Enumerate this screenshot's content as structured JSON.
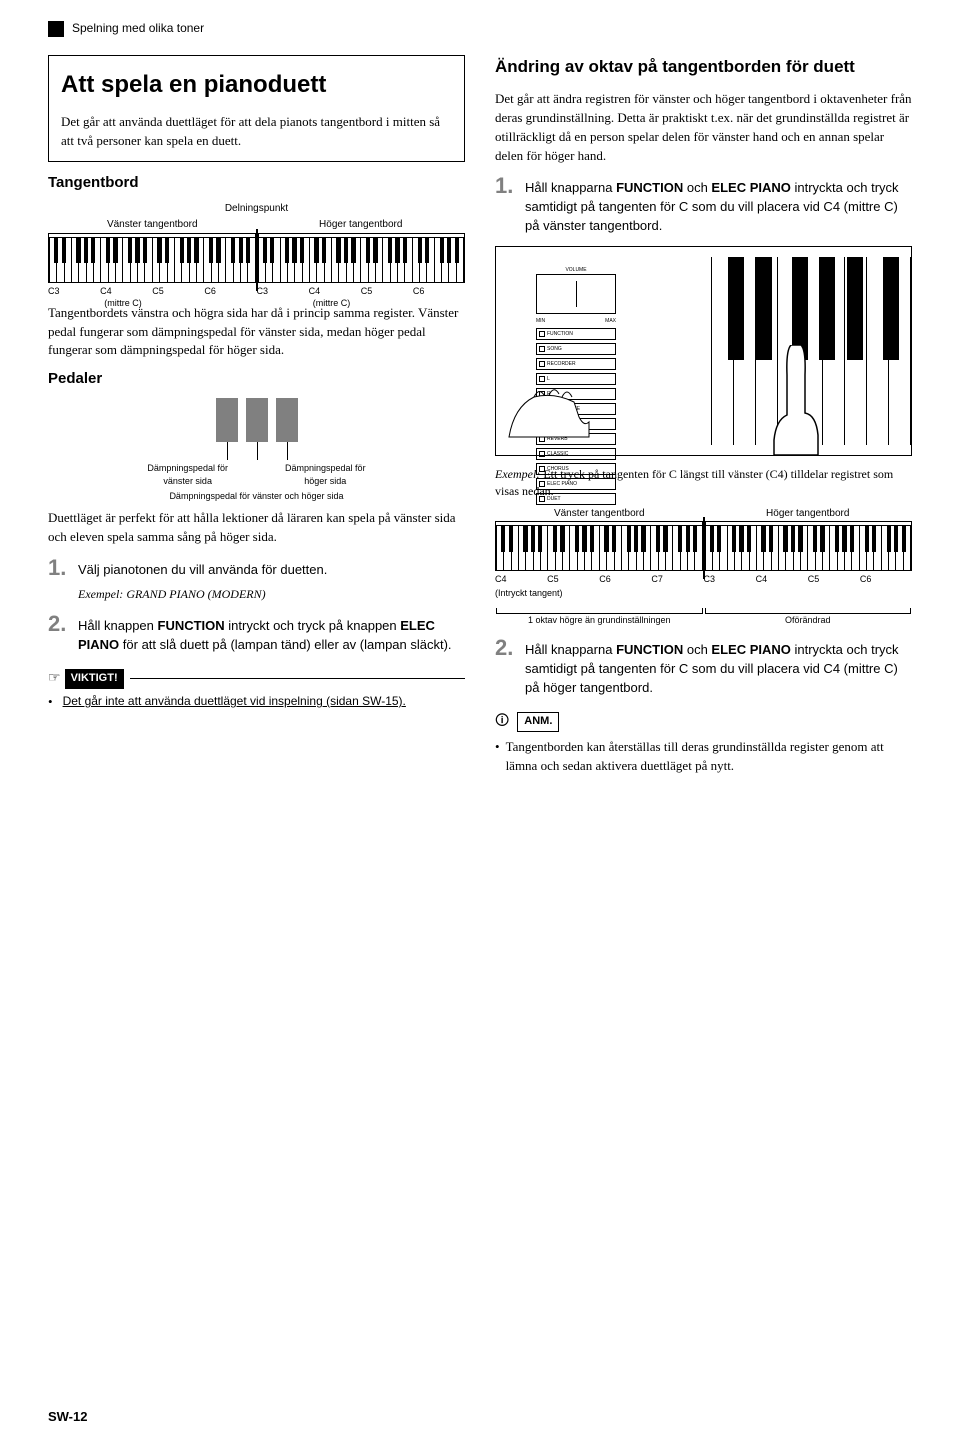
{
  "header": {
    "section_title": "Spelning med olika toner"
  },
  "left": {
    "box_title": "Att spela en pianoduett",
    "box_text": "Det går att använda duettläget för att dela pianots tangentbord i mitten så att två personer kan spela en duett.",
    "tangentbord_heading": "Tangentbord",
    "split_label": "Delningspunkt",
    "left_kb_label": "Vänster tangentbord",
    "right_kb_label": "Höger tangentbord",
    "kb_notes_left": [
      "C3",
      "C4",
      "C5",
      "C6"
    ],
    "kb_notes_right": [
      "C3",
      "C4",
      "C5",
      "C6"
    ],
    "mittre_c": "(mittre C)",
    "para1": "Tangentbordets vänstra och högra sida har då i princip samma register. Vänster pedal fungerar som dämpningspedal för vänster sida, medan höger pedal fungerar som dämpningspedal för höger sida.",
    "pedaler_heading": "Pedaler",
    "pedal_left_label": "Dämpningspedal för\nvänster sida",
    "pedal_right_label": "Dämpningspedal för\nhöger sida",
    "pedal_mid_label": "Dämpningspedal för vänster och höger sida",
    "para2": "Duettläget är perfekt för att hålla lektioner då läraren kan spela på vänster sida och eleven spela samma sång på höger sida.",
    "step1": "Välj pianotonen du vill använda för duetten.",
    "step1_ex_label": "Exempel:",
    "step1_ex": " GRAND PIANO (MODERN)",
    "step2_a": "Håll knappen ",
    "step2_b1": "FUNCTION",
    "step2_c": " intryckt och tryck på knappen ",
    "step2_b2": "ELEC PIANO",
    "step2_d": " för att slå duett på (lampan tänd) eller av (lampan släckt).",
    "viktigt_label": "VIKTIGT!",
    "viktigt_text": "Det går inte att använda duettläget vid inspelning (sidan SW-15)."
  },
  "right": {
    "heading": "Ändring av oktav på tangentborden för duett",
    "para1": "Det går att ändra registren för vänster och höger tangentbord i oktavenheter från deras grundinställning. Detta är praktiskt t.ex. när det grundinställda registret är otillräckligt då en person spelar delen för vänster hand och en annan spelar delen för höger hand.",
    "step1_a": "Håll knapparna ",
    "step1_b1": "FUNCTION",
    "step1_c": " och ",
    "step1_b2": "ELEC PIANO",
    "step1_d": " intryckta och tryck samtidigt på tangenten för C som du vill placera vid C4 (mittre C) på vänster tangentbord.",
    "panel_labels": [
      "VOLUME",
      "FUNCTION",
      "SONG",
      "RECORDER",
      "L",
      "R",
      "METRONOME",
      "MODERN",
      "REVERB",
      "CLASSIC",
      "CHORUS",
      "ELEC PIANO",
      "DUET"
    ],
    "exempel_label": "Exempel:",
    "exempel_text": " Ett tryck på tangenten för C längst till vänster (C4) tilldelar registret som visas nedan.",
    "kb2_left_label": "Vänster tangentbord",
    "kb2_right_label": "Höger tangentbord",
    "kb2_notes_left": [
      "C4",
      "C5",
      "C6",
      "C7"
    ],
    "kb2_notes_right": [
      "C3",
      "C4",
      "C5",
      "C6"
    ],
    "pressed_key": "(Intryckt tangent)",
    "under_left": "1 oktav högre än grundinställningen",
    "under_right": "Oförändrad",
    "step2_a": "Håll knapparna ",
    "step2_b1": "FUNCTION",
    "step2_c": " och ",
    "step2_b2": "ELEC PIANO",
    "step2_d": " intryckta och tryck samtidigt på tangenten för C som du vill placera vid C4 (mittre C) på höger tangentbord.",
    "anm_label": "ANM.",
    "anm_text": "Tangentborden kan återställas till deras grundinställda register genom att lämna och sedan aktivera duettläget på nytt."
  },
  "footer": "SW-12",
  "style": {
    "colors": {
      "text": "#000000",
      "bg": "#ffffff",
      "grey": "#808080"
    },
    "black_key_positions_28": [
      2.5,
      6.1,
      13.2,
      16.8,
      20.4,
      27.5,
      31.1,
      38.2,
      41.8,
      45.4,
      52.5,
      56.1,
      63.2,
      66.8,
      70.4,
      77.5,
      81.1,
      88.2,
      91.8,
      95.4
    ],
    "pi_black_positions": [
      8,
      22,
      40,
      54,
      68,
      86
    ]
  }
}
